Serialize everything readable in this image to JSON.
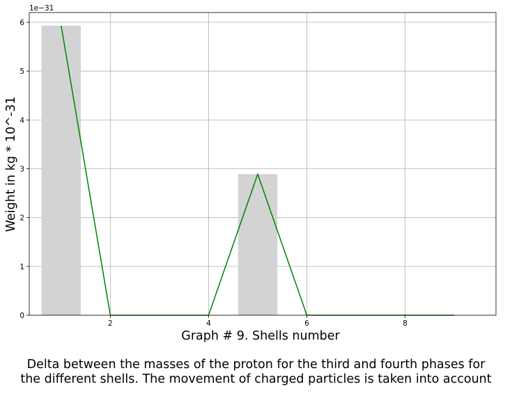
{
  "chart_data": {
    "type": "bar",
    "multiplier_label": "1e−31",
    "xlabel": "Graph # 9. Shells number",
    "ylabel": "Weight in kg * 10^-31",
    "xlim": [
      0.35,
      9.85
    ],
    "ylim": [
      0,
      6.2
    ],
    "x_ticks": [
      2,
      4,
      6,
      8
    ],
    "y_ticks": [
      0,
      1,
      2,
      3,
      4,
      5,
      6
    ],
    "grid": true,
    "bar_color": "#d3d3d3",
    "line_color": "#008000",
    "bars": {
      "x": [
        1,
        2,
        3,
        4,
        5,
        6,
        7,
        8,
        9
      ],
      "values": [
        5.93,
        0,
        0,
        0,
        2.89,
        0,
        0,
        0,
        0
      ]
    },
    "line": {
      "x": [
        1,
        2,
        3,
        4,
        5,
        6,
        7,
        8,
        9
      ],
      "values": [
        5.93,
        0,
        0,
        0,
        2.89,
        0,
        0,
        0,
        0
      ]
    }
  },
  "caption": {
    "line1": "Delta between the masses of the proton for the third and fourth phases for",
    "line2": "the different shells. The movement of charged particles is taken into account"
  }
}
